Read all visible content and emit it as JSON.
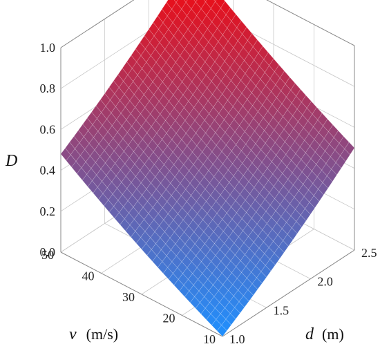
{
  "chart_data": {
    "type": "surface3d",
    "x": {
      "name": "d",
      "unit": "(m)",
      "range": [
        1.0,
        2.5
      ],
      "ticks": [
        "1.0",
        "1.5",
        "2.0",
        "2.5"
      ]
    },
    "y": {
      "name": "v",
      "unit": "(m/s)",
      "range": [
        10,
        50
      ],
      "ticks": [
        "10",
        "20",
        "30",
        "40",
        "50"
      ]
    },
    "z": {
      "name": "D",
      "range": [
        0.0,
        1.0
      ],
      "ticks": [
        "0.0",
        "0.2",
        "0.4",
        "0.6",
        "0.8",
        "1.0"
      ]
    },
    "corners": [
      {
        "d": 1.0,
        "v": 10,
        "D": 0.0
      },
      {
        "d": 2.5,
        "v": 10,
        "D": 0.5
      },
      {
        "d": 1.0,
        "v": 50,
        "D": 0.48
      },
      {
        "d": 2.5,
        "v": 50,
        "D": 1.0
      }
    ],
    "colormap": [
      "#1e90ff",
      "#ff0000"
    ],
    "grid": true
  }
}
